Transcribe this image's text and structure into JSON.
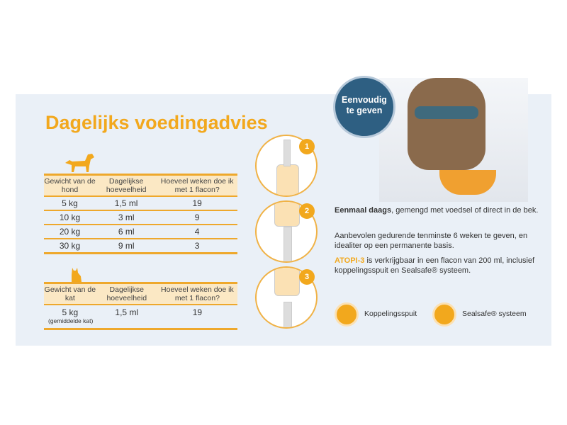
{
  "title": "Dagelijks voedingadvies",
  "dog_table": {
    "headers": [
      "Gewicht van de hond",
      "Dagelijkse hoeveelheid",
      "Hoeveel weken doe ik met 1 flacon?"
    ],
    "rows": [
      [
        "5 kg",
        "1,5 ml",
        "19"
      ],
      [
        "10 kg",
        "3 ml",
        "9"
      ],
      [
        "20 kg",
        "6 ml",
        "4"
      ],
      [
        "30 kg",
        "9 ml",
        "3"
      ]
    ]
  },
  "cat_table": {
    "headers": [
      "Gewicht van de kat",
      "Dagelijkse hoeveelheid",
      "Hoeveel weken doe ik met 1 flacon?"
    ],
    "rows": [
      [
        "5 kg",
        "1,5 ml",
        "19"
      ]
    ],
    "note": "(gemiddelde kat)"
  },
  "steps": [
    "1",
    "2",
    "3"
  ],
  "badge": {
    "line1": "Eenvoudig",
    "line2": "te geven"
  },
  "info": {
    "p1_bold": "Eenmaal daags",
    "p1_rest": ", gemengd met voedsel of direct in de bek.",
    "p2": "Aanbevolen gedurende tenminste 6 weken te geven, en idealiter op een permanente basis.",
    "p3_brand": "ATOPI-3",
    "p3_rest": " is verkrijgbaar in een flacon van 200 ml, inclusief koppelingsspuit en Sealsafe® systeem."
  },
  "features": [
    {
      "icon": "syringe-icon",
      "label": "Koppelingsspuit"
    },
    {
      "icon": "sealsafe-icon",
      "label": "Sealsafe® systeem"
    }
  ],
  "colors": {
    "accent": "#f2a81d",
    "panel": "#eaf0f7",
    "badge": "#2e5f82"
  }
}
